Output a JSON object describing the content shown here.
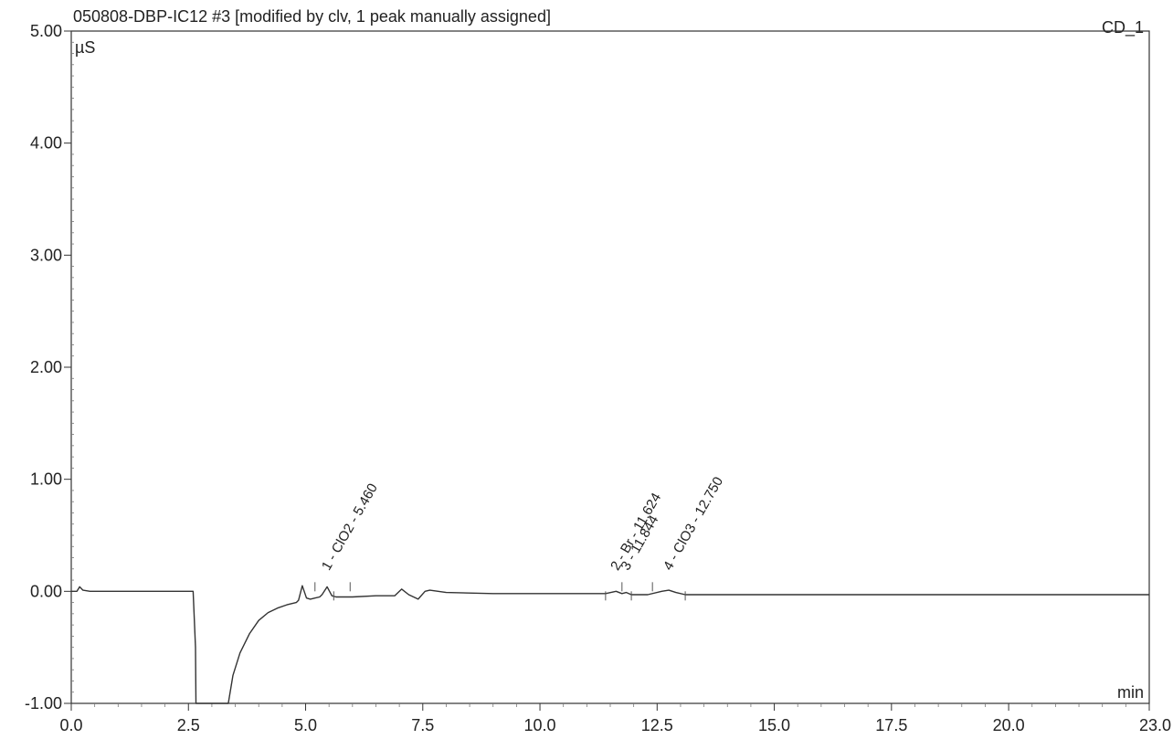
{
  "chart_data": {
    "type": "line",
    "title": "050808-DBP-IC12 #3 [modified by clv, 1 peak manually assigned]",
    "channel": "CD_1",
    "ylabel": "µS",
    "xlabel": "min",
    "xlim": [
      0.0,
      23.0
    ],
    "ylim": [
      -1.0,
      5.0
    ],
    "x_ticks": [
      0.0,
      2.5,
      5.0,
      7.5,
      10.0,
      12.5,
      15.0,
      17.5,
      20.0,
      23.0
    ],
    "x_tick_labels": [
      "0.0",
      "2.5",
      "5.0",
      "7.5",
      "10.0",
      "12.5",
      "15.0",
      "17.5",
      "20.0",
      "23.0"
    ],
    "y_ticks": [
      5.0,
      4.0,
      3.0,
      2.0,
      1.0,
      0.0,
      -1.0
    ],
    "y_tick_labels": [
      "5.00",
      "4.00",
      "3.00",
      "2.00",
      "1.00",
      "0.00",
      "-1.00"
    ],
    "grid": false,
    "series": [
      {
        "x": [
          0.0,
          0.12,
          0.18,
          0.25,
          0.4,
          1.0,
          2.0,
          2.6,
          2.65,
          2.66,
          3.35,
          3.45,
          3.6,
          3.8,
          4.0,
          4.2,
          4.4,
          4.6,
          4.8,
          4.85,
          4.93,
          5.02,
          5.1,
          5.2,
          5.3,
          5.35,
          5.46,
          5.56,
          5.65,
          6.0,
          6.5,
          6.9,
          7.05,
          7.2,
          7.4,
          7.55,
          7.65,
          8.0,
          9.0,
          10.0,
          11.0,
          11.4,
          11.624,
          11.75,
          11.844,
          11.95,
          12.3,
          12.6,
          12.75,
          12.9,
          13.1,
          14.0,
          16.0,
          18.0,
          20.0,
          23.0
        ],
        "y": [
          0.0,
          0.0,
          0.04,
          0.01,
          0.0,
          0.0,
          0.0,
          0.0,
          -0.5,
          -1.0,
          -1.0,
          -0.75,
          -0.55,
          -0.38,
          -0.26,
          -0.19,
          -0.15,
          -0.12,
          -0.1,
          -0.08,
          0.05,
          -0.06,
          -0.07,
          -0.06,
          -0.05,
          -0.03,
          0.04,
          -0.04,
          -0.05,
          -0.05,
          -0.04,
          -0.04,
          0.02,
          -0.03,
          -0.07,
          0.0,
          0.01,
          -0.01,
          -0.02,
          -0.02,
          -0.02,
          -0.02,
          0.0,
          -0.02,
          -0.01,
          -0.03,
          -0.03,
          0.0,
          0.01,
          -0.01,
          -0.03,
          -0.03,
          -0.03,
          -0.03,
          -0.03,
          -0.03
        ]
      }
    ],
    "peaks": [
      {
        "label": "1 - ClO2 - 5.460",
        "rt": 5.46
      },
      {
        "label": "2 - Br - 11.624",
        "rt": 11.624
      },
      {
        "label": "3 - 11.844",
        "rt": 11.844
      },
      {
        "label": "4 - ClO3 - 12.750",
        "rt": 12.75
      }
    ],
    "integration_marks": [
      5.2,
      5.6,
      5.95,
      11.4,
      11.75,
      11.95,
      12.4,
      13.1
    ]
  }
}
